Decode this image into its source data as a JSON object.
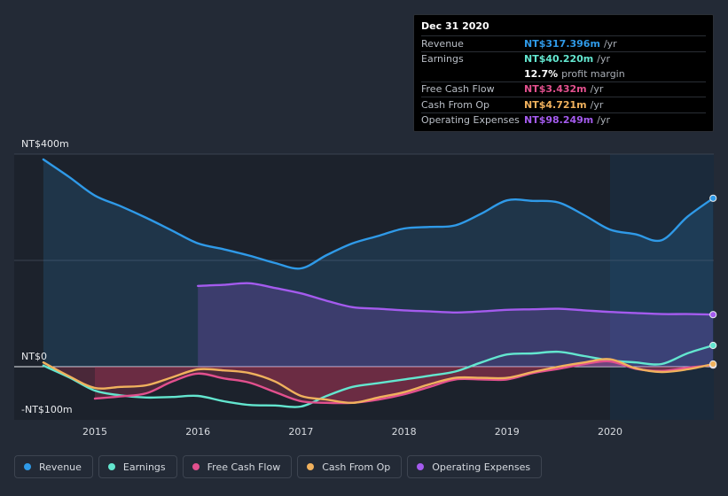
{
  "tooltip": {
    "date": "Dec 31 2020",
    "rows": [
      {
        "label": "Revenue",
        "value": "NT$317.396m",
        "unit": "/yr",
        "color": "#2f9ae8"
      },
      {
        "label": "Earnings",
        "value": "NT$40.220m",
        "unit": "/yr",
        "color": "#63e6cf"
      },
      {
        "label": "",
        "value": "12.7%",
        "unit": "profit margin",
        "color": "#ffffff"
      },
      {
        "label": "Free Cash Flow",
        "value": "NT$3.432m",
        "unit": "/yr",
        "color": "#e2508e"
      },
      {
        "label": "Cash From Op",
        "value": "NT$4.721m",
        "unit": "/yr",
        "color": "#f0b15d"
      },
      {
        "label": "Operating Expenses",
        "value": "NT$98.249m",
        "unit": "/yr",
        "color": "#a45bee"
      }
    ]
  },
  "legend": [
    {
      "label": "Revenue",
      "color": "#2f9ae8"
    },
    {
      "label": "Earnings",
      "color": "#63e6cf"
    },
    {
      "label": "Free Cash Flow",
      "color": "#e2508e"
    },
    {
      "label": "Cash From Op",
      "color": "#f0b15d"
    },
    {
      "label": "Operating Expenses",
      "color": "#a45bee"
    }
  ],
  "chart_data": {
    "type": "line",
    "y_unit": "NT$ millions",
    "ylim": [
      -100,
      400
    ],
    "xlim": [
      2014.5,
      2021.0
    ],
    "y_tick_labels": [
      {
        "value": 400,
        "label": "NT$400m"
      },
      {
        "value": 0,
        "label": "NT$0"
      },
      {
        "value": -100,
        "label": "-NT$100m"
      }
    ],
    "x_ticks": [
      2015,
      2016,
      2017,
      2018,
      2019,
      2020
    ],
    "x_tick_labels": [
      "2015",
      "2016",
      "2017",
      "2018",
      "2019",
      "2020"
    ],
    "highlight_from": 2020.0,
    "series": [
      {
        "name": "Revenue",
        "color": "#2f9ae8",
        "area": true,
        "x": [
          2014.5,
          2014.75,
          2015.0,
          2015.25,
          2015.5,
          2015.75,
          2016.0,
          2016.25,
          2016.5,
          2016.75,
          2017.0,
          2017.25,
          2017.5,
          2017.75,
          2018.0,
          2018.25,
          2018.5,
          2018.75,
          2019.0,
          2019.25,
          2019.5,
          2019.75,
          2020.0,
          2020.25,
          2020.5,
          2020.75,
          2021.0
        ],
        "values": [
          390,
          357,
          322,
          302,
          280,
          256,
          232,
          221,
          209,
          195,
          185,
          210,
          232,
          246,
          260,
          263,
          266,
          288,
          313,
          312,
          309,
          285,
          258,
          249,
          238,
          282,
          317
        ]
      },
      {
        "name": "Operating Expenses",
        "color": "#a45bee",
        "area": true,
        "x": [
          2016.0,
          2016.25,
          2016.5,
          2016.75,
          2017.0,
          2017.25,
          2017.5,
          2017.75,
          2018.0,
          2018.25,
          2018.5,
          2018.75,
          2019.0,
          2019.25,
          2019.5,
          2019.75,
          2020.0,
          2020.25,
          2020.5,
          2020.75,
          2021.0
        ],
        "values": [
          152,
          154,
          157,
          148,
          138,
          124,
          112,
          109,
          106,
          104,
          102,
          104,
          107,
          108,
          109,
          106,
          103,
          101,
          99,
          99,
          98
        ]
      },
      {
        "name": "Earnings",
        "color": "#63e6cf",
        "area": false,
        "x": [
          2014.5,
          2014.75,
          2015.0,
          2015.25,
          2015.5,
          2015.75,
          2016.0,
          2016.25,
          2016.5,
          2016.75,
          2017.0,
          2017.25,
          2017.5,
          2017.75,
          2018.0,
          2018.25,
          2018.5,
          2018.75,
          2019.0,
          2019.25,
          2019.5,
          2019.75,
          2020.0,
          2020.25,
          2020.5,
          2020.75,
          2021.0
        ],
        "values": [
          2,
          -20,
          -45,
          -54,
          -58,
          -57,
          -55,
          -65,
          -72,
          -73,
          -75,
          -55,
          -38,
          -31,
          -24,
          -17,
          -9,
          8,
          23,
          25,
          28,
          20,
          12,
          8,
          5,
          25,
          40
        ]
      },
      {
        "name": "Free Cash Flow",
        "color": "#e2508e",
        "area": false,
        "x": [
          2015.0,
          2015.25,
          2015.5,
          2015.75,
          2016.0,
          2016.25,
          2016.5,
          2016.75,
          2017.0,
          2017.25,
          2017.5,
          2017.75,
          2018.0,
          2018.25,
          2018.5,
          2018.75,
          2019.0,
          2019.25,
          2019.5,
          2019.75,
          2020.0,
          2020.25,
          2020.5,
          2020.75,
          2021.0
        ],
        "values": [
          -60,
          -56,
          -50,
          -28,
          -13,
          -22,
          -30,
          -48,
          -65,
          -68,
          -68,
          -62,
          -52,
          -38,
          -24,
          -24,
          -24,
          -12,
          -4,
          5,
          10,
          -4,
          -8,
          -2,
          3
        ]
      },
      {
        "name": "Cash From Op",
        "color": "#f0b15d",
        "area": false,
        "x": [
          2014.5,
          2014.75,
          2015.0,
          2015.25,
          2015.5,
          2015.75,
          2016.0,
          2016.25,
          2016.5,
          2016.75,
          2017.0,
          2017.25,
          2017.5,
          2017.75,
          2018.0,
          2018.25,
          2018.5,
          2018.75,
          2019.0,
          2019.25,
          2019.5,
          2019.75,
          2020.0,
          2020.25,
          2020.5,
          2020.75,
          2021.0
        ],
        "values": [
          8,
          -18,
          -40,
          -38,
          -35,
          -20,
          -5,
          -7,
          -12,
          -28,
          -55,
          -62,
          -68,
          -58,
          -48,
          -33,
          -21,
          -21,
          -21,
          -10,
          0,
          8,
          14,
          -3,
          -10,
          -5,
          5
        ]
      }
    ]
  }
}
